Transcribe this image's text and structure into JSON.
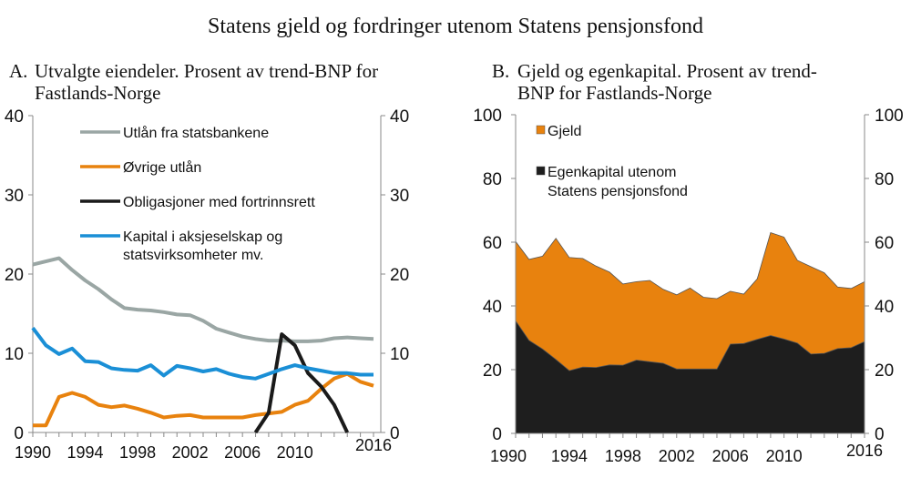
{
  "title": "Statens gjeld og fordringer utenom Statens pensjonsfond",
  "chart_data": [
    {
      "type": "line",
      "panel_label": "A.",
      "title_lines": [
        "Utvalgte eiendeler. Prosent av trend-BNP for",
        "Fastlands-Norge"
      ],
      "xlim": [
        1990,
        2016
      ],
      "ylim": [
        0,
        40
      ],
      "yticks": [
        0,
        10,
        20,
        30,
        40
      ],
      "xticks": [
        1990,
        1994,
        1998,
        2002,
        2006,
        2010,
        2016
      ],
      "legend_position": "top-right",
      "series": [
        {
          "name": "Utlån fra statsbankene",
          "color": "#9aa6a4",
          "x": [
            1990,
            1991,
            1992,
            1993,
            1994,
            1995,
            1996,
            1997,
            1998,
            1999,
            2000,
            2001,
            2002,
            2003,
            2004,
            2005,
            2006,
            2007,
            2008,
            2009,
            2010,
            2011,
            2012,
            2013,
            2014,
            2015,
            2016
          ],
          "values": [
            21.2,
            21.6,
            22.0,
            20.5,
            19.2,
            18.1,
            16.8,
            15.7,
            15.5,
            15.4,
            15.2,
            14.9,
            14.8,
            14.1,
            13.1,
            12.6,
            12.1,
            11.8,
            11.6,
            11.6,
            11.5,
            11.5,
            11.6,
            11.9,
            12.0,
            11.9,
            11.8
          ]
        },
        {
          "name": "Øvrige utlån",
          "color": "#e8820e",
          "x": [
            1990,
            1991,
            1992,
            1993,
            1994,
            1995,
            1996,
            1997,
            1998,
            1999,
            2000,
            2001,
            2002,
            2003,
            2004,
            2005,
            2006,
            2007,
            2008,
            2009,
            2010,
            2011,
            2012,
            2013,
            2014,
            2015,
            2016
          ],
          "values": [
            0.9,
            0.9,
            4.5,
            5.0,
            4.5,
            3.5,
            3.2,
            3.4,
            3.0,
            2.5,
            1.9,
            2.1,
            2.2,
            1.9,
            1.9,
            1.9,
            1.9,
            2.2,
            2.4,
            2.6,
            3.5,
            4.0,
            5.5,
            6.8,
            7.4,
            6.4,
            5.9
          ]
        },
        {
          "name": "Obligasjoner med fortrinnsrett",
          "color": "#1a1a1a",
          "x": [
            2007,
            2008,
            2009,
            2010,
            2011,
            2012,
            2013,
            2014
          ],
          "values": [
            0,
            2.5,
            12.4,
            11.0,
            7.5,
            5.8,
            3.5,
            0
          ]
        },
        {
          "name_lines": [
            "Kapital i aksjeselskap og",
            "statsvirksomheter mv."
          ],
          "color": "#1a8fd6",
          "x": [
            1990,
            1991,
            1992,
            1993,
            1994,
            1995,
            1996,
            1997,
            1998,
            1999,
            2000,
            2001,
            2002,
            2003,
            2004,
            2005,
            2006,
            2007,
            2008,
            2009,
            2010,
            2011,
            2012,
            2013,
            2014,
            2015,
            2016
          ],
          "values": [
            13.2,
            11.0,
            9.9,
            10.6,
            9.0,
            8.9,
            8.1,
            7.9,
            7.8,
            8.5,
            7.2,
            8.4,
            8.1,
            7.7,
            8.0,
            7.4,
            7.0,
            6.8,
            7.4,
            8.0,
            8.5,
            8.1,
            7.8,
            7.5,
            7.5,
            7.3,
            7.3
          ]
        }
      ]
    },
    {
      "type": "area",
      "stacked": true,
      "panel_label": "B.",
      "title_lines": [
        "Gjeld og egenkapital. Prosent av trend-",
        "BNP for Fastlands-Norge"
      ],
      "xlim": [
        1990,
        2016
      ],
      "ylim": [
        0,
        100
      ],
      "yticks": [
        0,
        20,
        40,
        60,
        80,
        100
      ],
      "xticks": [
        1990,
        1994,
        1998,
        2002,
        2006,
        2010,
        2016
      ],
      "legend_position": "top-left",
      "x": [
        1990,
        1991,
        1992,
        1993,
        1994,
        1995,
        1996,
        1997,
        1998,
        1999,
        2000,
        2001,
        2002,
        2003,
        2004,
        2005,
        2006,
        2007,
        2008,
        2009,
        2010,
        2011,
        2012,
        2013,
        2014,
        2015,
        2016
      ],
      "series": [
        {
          "name_lines": [
            "Egenkapital utenom",
            "Statens pensjonsfond"
          ],
          "color": "#1e1e1e",
          "values": [
            35.3,
            29.2,
            26.5,
            23.2,
            19.7,
            20.8,
            20.7,
            21.5,
            21.4,
            23.0,
            22.5,
            22.0,
            20.2,
            20.2,
            20.2,
            20.2,
            28.0,
            28.2,
            29.5,
            30.7,
            29.6,
            28.3,
            24.9,
            25.1,
            26.6,
            26.9,
            28.8
          ]
        },
        {
          "name": "Gjeld",
          "color": "#e8820e",
          "values": [
            24.9,
            25.4,
            29.1,
            38.0,
            35.5,
            34.1,
            31.8,
            29.1,
            25.5,
            24.6,
            25.5,
            23.2,
            23.3,
            25.4,
            22.5,
            22.1,
            16.6,
            15.5,
            19.0,
            32.3,
            32.0,
            26.0,
            27.4,
            25.3,
            19.3,
            18.6,
            18.8
          ]
        }
      ]
    }
  ]
}
